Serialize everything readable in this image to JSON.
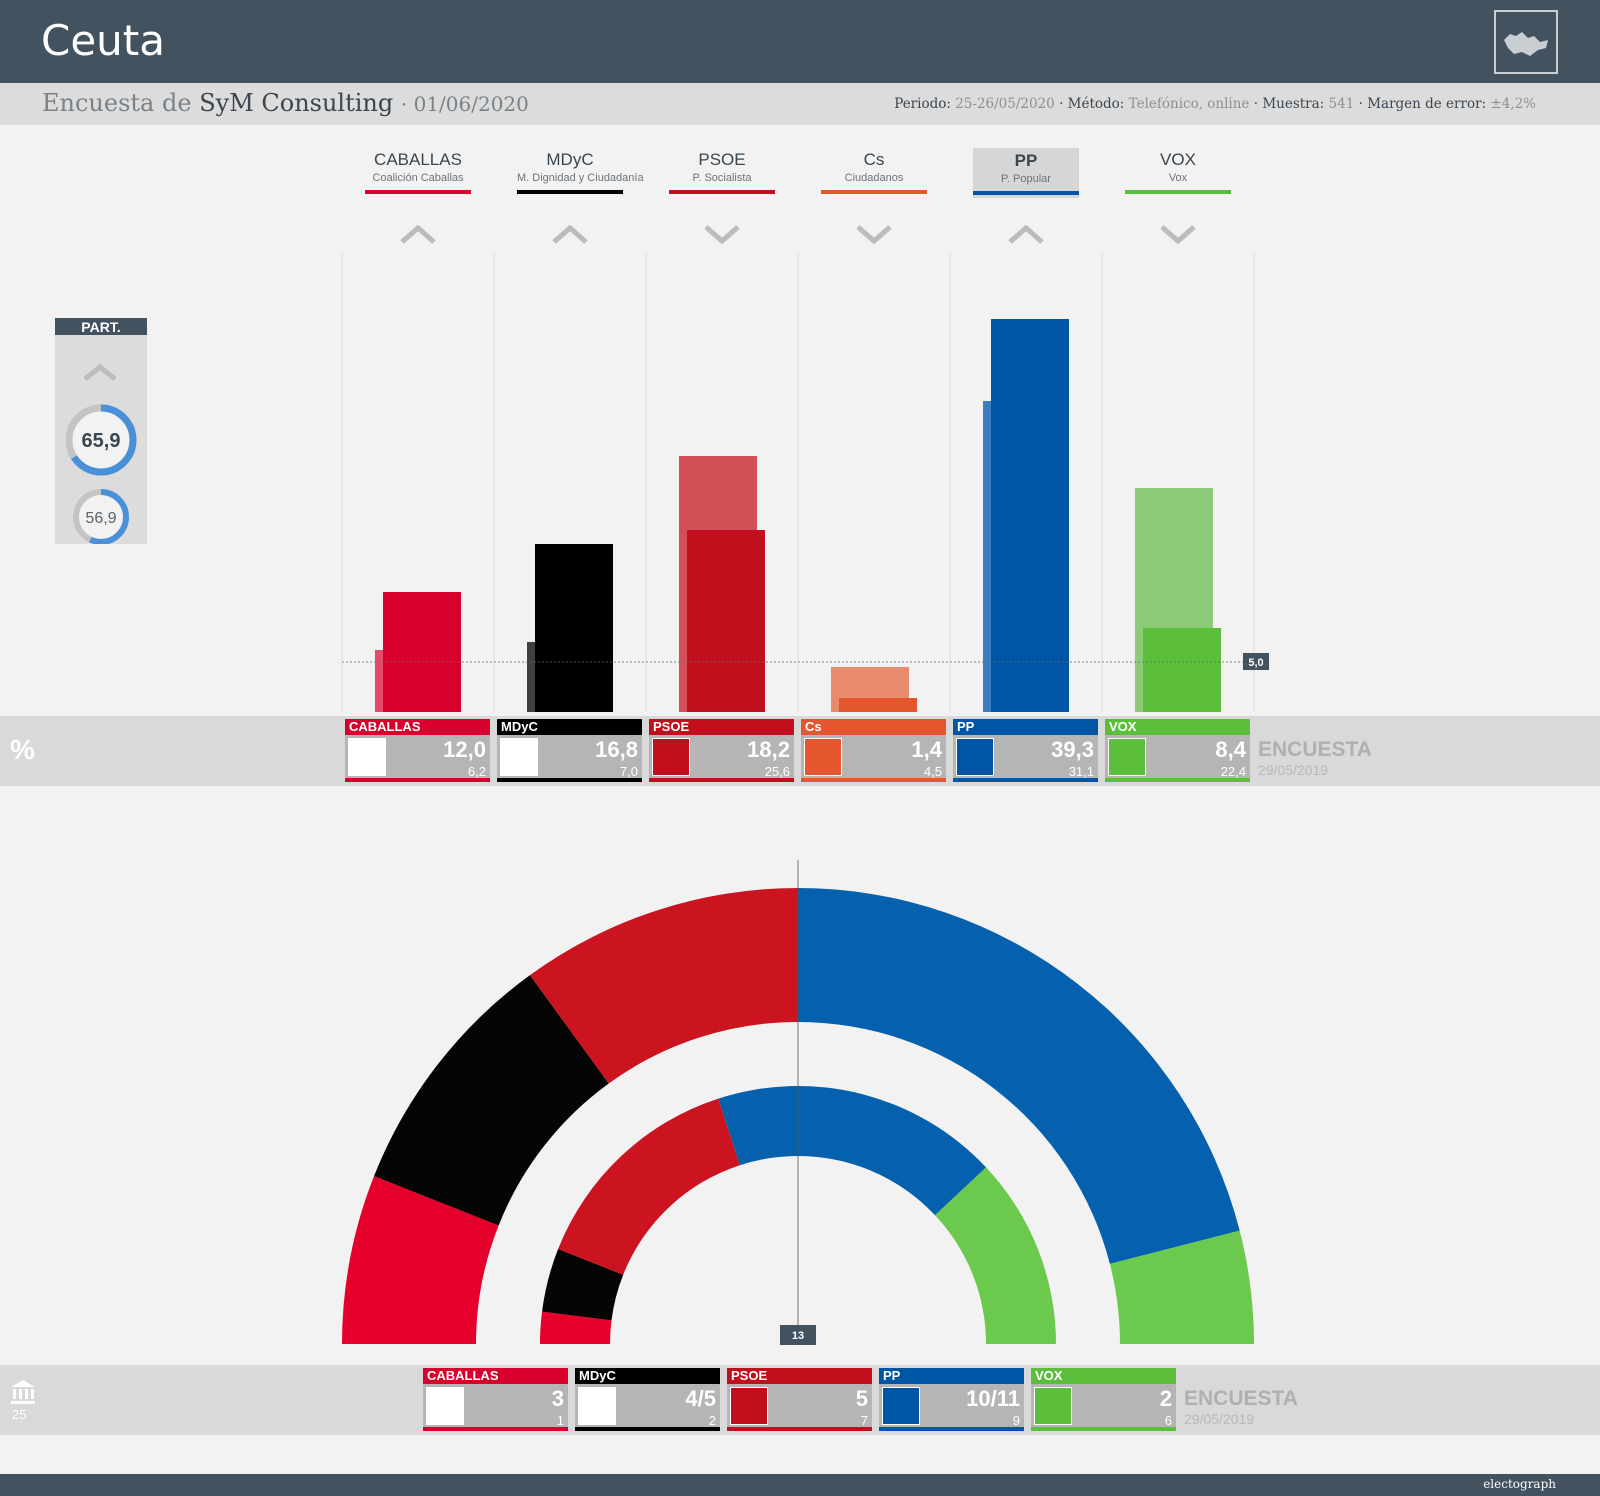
{
  "header": {
    "title": "Ceuta"
  },
  "subheader": {
    "prefix": "Encuesta de",
    "pollster": "SyM Consulting",
    "date": "· 01/06/2020",
    "periodo_label": "Periodo:",
    "periodo": "25-26/05/2020",
    "metodo_label": "· Método:",
    "metodo": "Telefónico, online",
    "muestra_label": "· Muestra:",
    "muestra": "541",
    "margen_label": "· Margen de error:",
    "margen": "±4,2%"
  },
  "participation": {
    "label": "PART.",
    "current": "65,9",
    "previous": "56,9",
    "trend": "up"
  },
  "threshold_label": "5,0",
  "majority_label": "13",
  "percent_symbol": "%",
  "seats_total": "25",
  "survey_label": "ENCUESTA",
  "survey_prev_date": "29/05/2019",
  "parties": [
    {
      "abbr": "CABALLAS",
      "full": "Coalición Caballas",
      "color": "#d8002d",
      "light": "#e64a6a",
      "trend": "up",
      "pct": "12,0",
      "pct_prev": "6,2",
      "seats": "3",
      "seats_prev": "1"
    },
    {
      "abbr": "MDyC",
      "full": "M. Dignidad y Ciudadanía",
      "color": "#000000",
      "light": "#404040",
      "trend": "up",
      "pct": "16,8",
      "pct_prev": "7,0",
      "seats": "4/5",
      "seats_prev": "2"
    },
    {
      "abbr": "PSOE",
      "full": "P. Socialista",
      "color": "#c20f1e",
      "light": "#d25058",
      "trend": "down",
      "pct": "18,2",
      "pct_prev": "25,6",
      "seats": "5",
      "seats_prev": "7"
    },
    {
      "abbr": "Cs",
      "full": "Ciudadanos",
      "color": "#e4572e",
      "light": "#ea8a6c",
      "trend": "down",
      "pct": "1,4",
      "pct_prev": "4,5",
      "seats": "",
      "seats_prev": ""
    },
    {
      "abbr": "PP",
      "full": "P. Popular",
      "color": "#0055a4",
      "light": "#3a7fc4",
      "trend": "up",
      "pct": "39,3",
      "pct_prev": "31,1",
      "seats": "10/11",
      "seats_prev": "9"
    },
    {
      "abbr": "VOX",
      "full": "Vox",
      "color": "#5cbf3c",
      "light": "#8dcb7a",
      "trend": "down",
      "pct": "8,4",
      "pct_prev": "22,4",
      "seats": "2",
      "seats_prev": "6"
    }
  ],
  "chart_data": [
    {
      "type": "bar",
      "categories": [
        "CABALLAS",
        "MDyC",
        "PSOE",
        "Cs",
        "PP",
        "VOX"
      ],
      "series": [
        {
          "name": "ENCUESTA",
          "values": [
            12.0,
            16.8,
            18.2,
            1.4,
            39.3,
            8.4
          ]
        },
        {
          "name": "29/05/2019",
          "values": [
            6.2,
            7.0,
            25.6,
            4.5,
            31.1,
            22.4
          ]
        }
      ],
      "threshold": 5.0,
      "ylim": [
        0,
        40
      ]
    },
    {
      "type": "pie",
      "title": "",
      "categories": [
        "CABALLAS",
        "MDyC",
        "PSOE",
        "PP",
        "VOX"
      ],
      "series": [
        {
          "name": "ENCUESTA",
          "values": [
            3,
            4.5,
            5,
            10.5,
            2
          ]
        },
        {
          "name": "29/05/2019",
          "values": [
            1,
            2,
            7,
            9,
            6
          ]
        }
      ],
      "total_seats": 25,
      "majority": 13
    }
  ],
  "brand": "electograph"
}
